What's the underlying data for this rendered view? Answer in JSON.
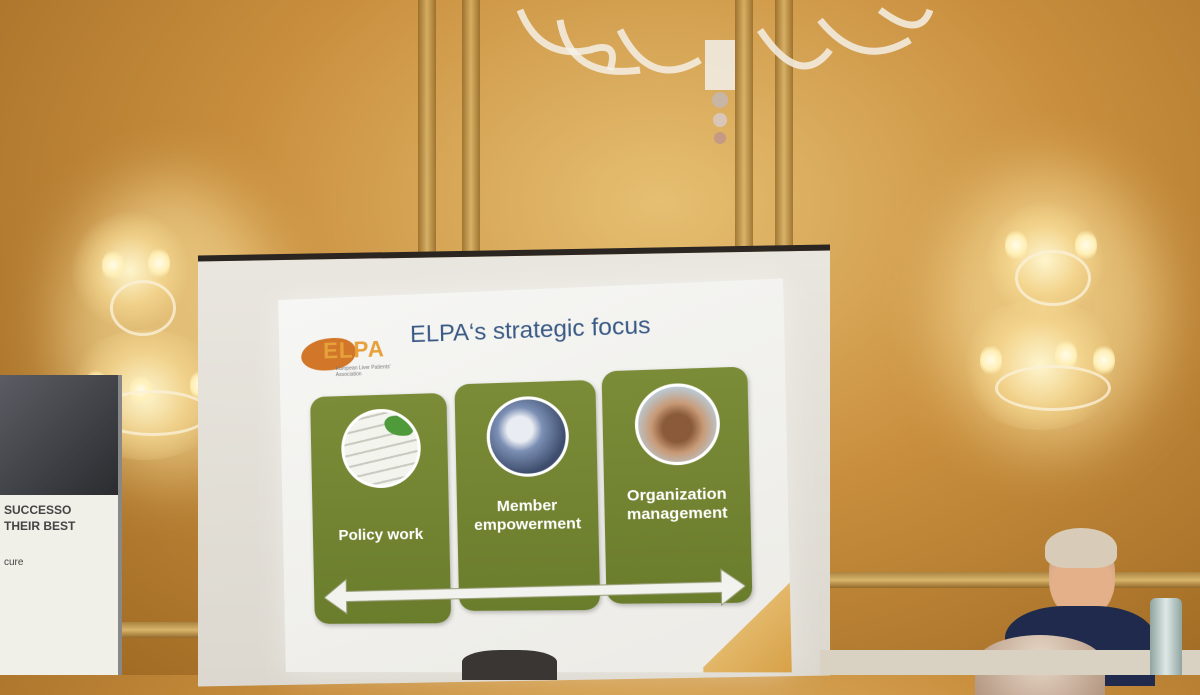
{
  "slide": {
    "title": "ELPA‘s strategic focus",
    "logo": {
      "name": "ELPA",
      "subtitle": "European Liver Patients' Association"
    },
    "tiles": [
      {
        "label": "Policy work",
        "image": "policy-document-photo"
      },
      {
        "label": "Member empowerment",
        "image": "group-of-people-photo"
      },
      {
        "label": "Organization management",
        "image": "stacked-hands-photo"
      }
    ],
    "arrow": "double-headed-arrow",
    "colors": {
      "tile": "#6f8230",
      "title": "#3a5a86",
      "logo": "#d2772a",
      "accent": "#e3b86a"
    }
  },
  "banner": {
    "line1": "SUCCESSO",
    "line2": "THEIR BEST",
    "line3": "cure"
  }
}
